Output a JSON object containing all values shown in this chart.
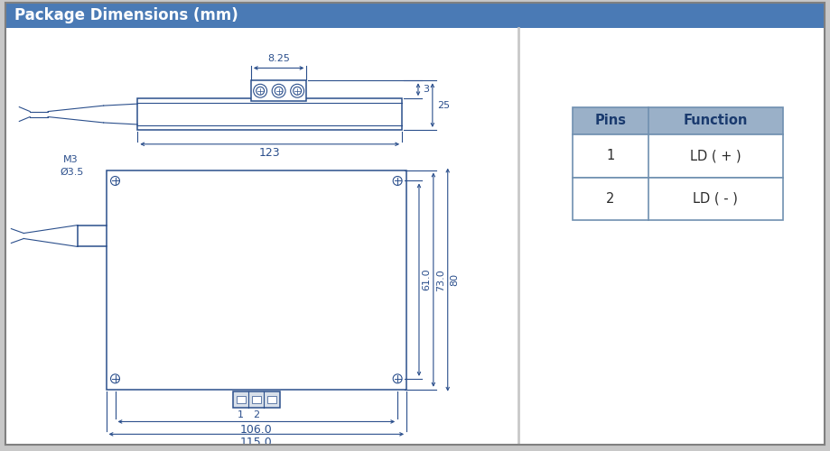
{
  "title": "Package Dimensions (mm)",
  "title_bg": "#4a7ab5",
  "title_color": "white",
  "outer_bg": "#c8c8c8",
  "inner_bg": "white",
  "draw_color": "#2b4f8c",
  "table_header_bg": "#9ab0c8",
  "table_header_color": "#1a3a6e",
  "table_cell_bg": "white",
  "table_border_color": "#7090b0",
  "pins": [
    "1",
    "2"
  ],
  "functions": [
    "LD ( + )",
    "LD ( - )"
  ]
}
